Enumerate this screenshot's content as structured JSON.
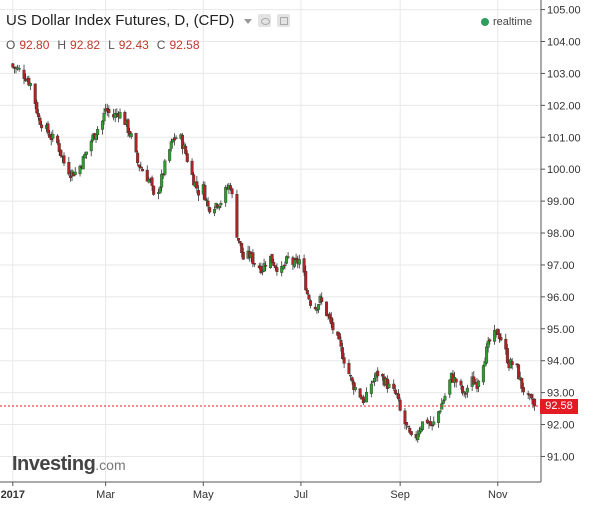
{
  "header": {
    "title": "US Dollar Index Futures, D, (CFD)",
    "realtime": "realtime",
    "ohlc": [
      {
        "k": "O",
        "v": "92.80"
      },
      {
        "k": "H",
        "v": "92.82"
      },
      {
        "k": "L",
        "v": "92.43"
      },
      {
        "k": "C",
        "v": "92.58"
      }
    ]
  },
  "logo": {
    "brand": "Investing",
    "domain": ".com"
  },
  "colors": {
    "up": "#2ca02c",
    "down": "#b22222",
    "last_price": "#e31b23",
    "grid": "#e8e8e8"
  },
  "chart_data": {
    "type": "candlestick",
    "title": "US Dollar Index Futures, D, (CFD)",
    "ylim": [
      90.2,
      105.3
    ],
    "y_ticks": [
      "105.00",
      "104.00",
      "103.00",
      "102.00",
      "101.00",
      "100.00",
      "99.00",
      "98.00",
      "97.00",
      "96.00",
      "95.00",
      "94.00",
      "93.00",
      "92.00",
      "91.00"
    ],
    "x_ticks": [
      {
        "label": "2017",
        "day": 0
      },
      {
        "label": "Mar",
        "day": 58
      },
      {
        "label": "May",
        "day": 119
      },
      {
        "label": "Jul",
        "day": 180
      },
      {
        "label": "Sep",
        "day": 242
      },
      {
        "label": "Nov",
        "day": 303
      }
    ],
    "day_range": [
      -8,
      330
    ],
    "last_price": "92.58",
    "last_price_value": 92.58,
    "closes": [
      [
        0,
        103.2
      ],
      [
        4,
        103.1
      ],
      [
        8,
        102.9
      ],
      [
        12,
        102.6
      ],
      [
        16,
        101.6
      ],
      [
        20,
        101.3
      ],
      [
        24,
        101.0
      ],
      [
        28,
        100.8
      ],
      [
        32,
        100.2
      ],
      [
        36,
        99.9
      ],
      [
        40,
        99.9
      ],
      [
        44,
        100.3
      ],
      [
        48,
        100.8
      ],
      [
        52,
        101.2
      ],
      [
        56,
        101.5
      ],
      [
        58,
        101.9
      ],
      [
        62,
        101.6
      ],
      [
        66,
        101.8
      ],
      [
        70,
        101.5
      ],
      [
        74,
        101.0
      ],
      [
        78,
        100.2
      ],
      [
        82,
        99.9
      ],
      [
        86,
        99.6
      ],
      [
        88,
        99.1
      ],
      [
        92,
        99.5
      ],
      [
        96,
        100.3
      ],
      [
        100,
        100.9
      ],
      [
        104,
        101.1
      ],
      [
        108,
        100.5
      ],
      [
        112,
        99.8
      ],
      [
        116,
        99.3
      ],
      [
        119,
        99.4
      ],
      [
        122,
        98.8
      ],
      [
        126,
        98.9
      ],
      [
        130,
        99.0
      ],
      [
        134,
        99.4
      ],
      [
        136,
        99.5
      ],
      [
        140,
        98.0
      ],
      [
        144,
        97.2
      ],
      [
        148,
        97.3
      ],
      [
        152,
        97.0
      ],
      [
        156,
        96.9
      ],
      [
        160,
        97.3
      ],
      [
        164,
        97.0
      ],
      [
        168,
        96.8
      ],
      [
        172,
        97.2
      ],
      [
        176,
        97.0
      ],
      [
        180,
        97.2
      ],
      [
        184,
        96.1
      ],
      [
        188,
        95.6
      ],
      [
        192,
        95.9
      ],
      [
        196,
        95.5
      ],
      [
        200,
        95.0
      ],
      [
        204,
        94.5
      ],
      [
        208,
        93.9
      ],
      [
        212,
        93.3
      ],
      [
        216,
        93.0
      ],
      [
        220,
        92.7
      ],
      [
        224,
        93.3
      ],
      [
        228,
        93.6
      ],
      [
        232,
        93.4
      ],
      [
        236,
        93.1
      ],
      [
        240,
        92.9
      ],
      [
        242,
        92.4
      ],
      [
        246,
        91.9
      ],
      [
        250,
        91.4
      ],
      [
        254,
        91.9
      ],
      [
        258,
        92.2
      ],
      [
        262,
        91.9
      ],
      [
        266,
        92.4
      ],
      [
        270,
        92.9
      ],
      [
        274,
        93.5
      ],
      [
        278,
        93.3
      ],
      [
        282,
        92.9
      ],
      [
        286,
        93.4
      ],
      [
        290,
        93.3
      ],
      [
        294,
        94.0
      ],
      [
        298,
        94.6
      ],
      [
        303,
        94.9
      ],
      [
        306,
        94.6
      ],
      [
        310,
        93.9
      ],
      [
        314,
        93.9
      ],
      [
        318,
        93.2
      ],
      [
        322,
        92.8
      ],
      [
        326,
        92.58
      ]
    ]
  }
}
